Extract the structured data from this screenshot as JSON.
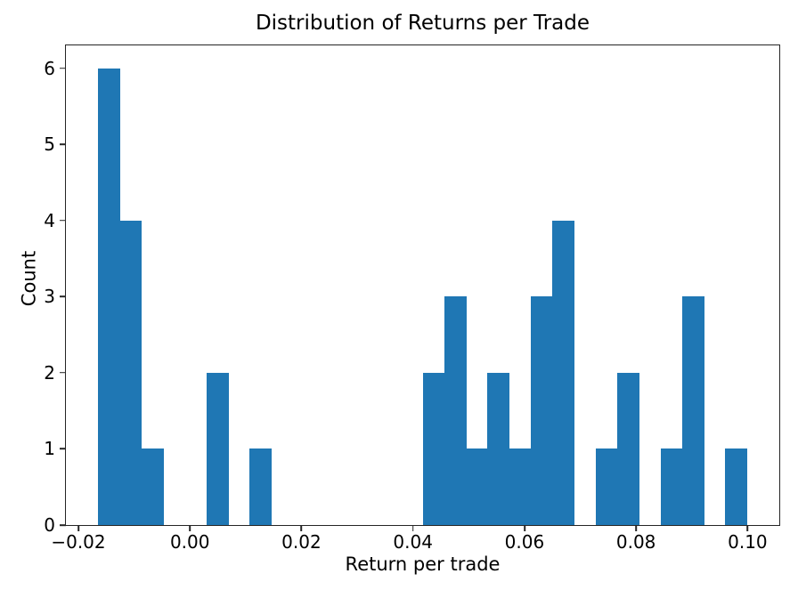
{
  "chart": {
    "title": "Distribution of Returns per Trade",
    "xlabel": "Return per trade",
    "ylabel": "Count"
  },
  "chart_data": {
    "type": "bar",
    "subtype": "histogram",
    "title": "Distribution of Returns per Trade",
    "xlabel": "Return per trade",
    "ylabel": "Count",
    "bar_color": "#1f77b4",
    "grid": false,
    "legend": null,
    "bin_start": -0.016419,
    "bin_width": 0.0038764,
    "counts": [
      6,
      4,
      1,
      0,
      0,
      2,
      0,
      1,
      0,
      0,
      0,
      0,
      0,
      0,
      0,
      2,
      3,
      1,
      2,
      1,
      3,
      4,
      0,
      1,
      2,
      0,
      1,
      3,
      0,
      1
    ],
    "xlim": [
      -0.0222336,
      0.1056876
    ],
    "ylim": [
      0,
      6.3
    ],
    "x_ticks": {
      "values": [
        -0.02,
        0.0,
        0.02,
        0.04,
        0.06,
        0.08,
        0.1
      ],
      "labels": [
        "−0.02",
        "0.00",
        "0.02",
        "0.04",
        "0.06",
        "0.08",
        "0.10"
      ]
    },
    "y_ticks": {
      "values": [
        0,
        1,
        2,
        3,
        4,
        5,
        6
      ],
      "labels": [
        "0",
        "1",
        "2",
        "3",
        "4",
        "5",
        "6"
      ]
    }
  }
}
